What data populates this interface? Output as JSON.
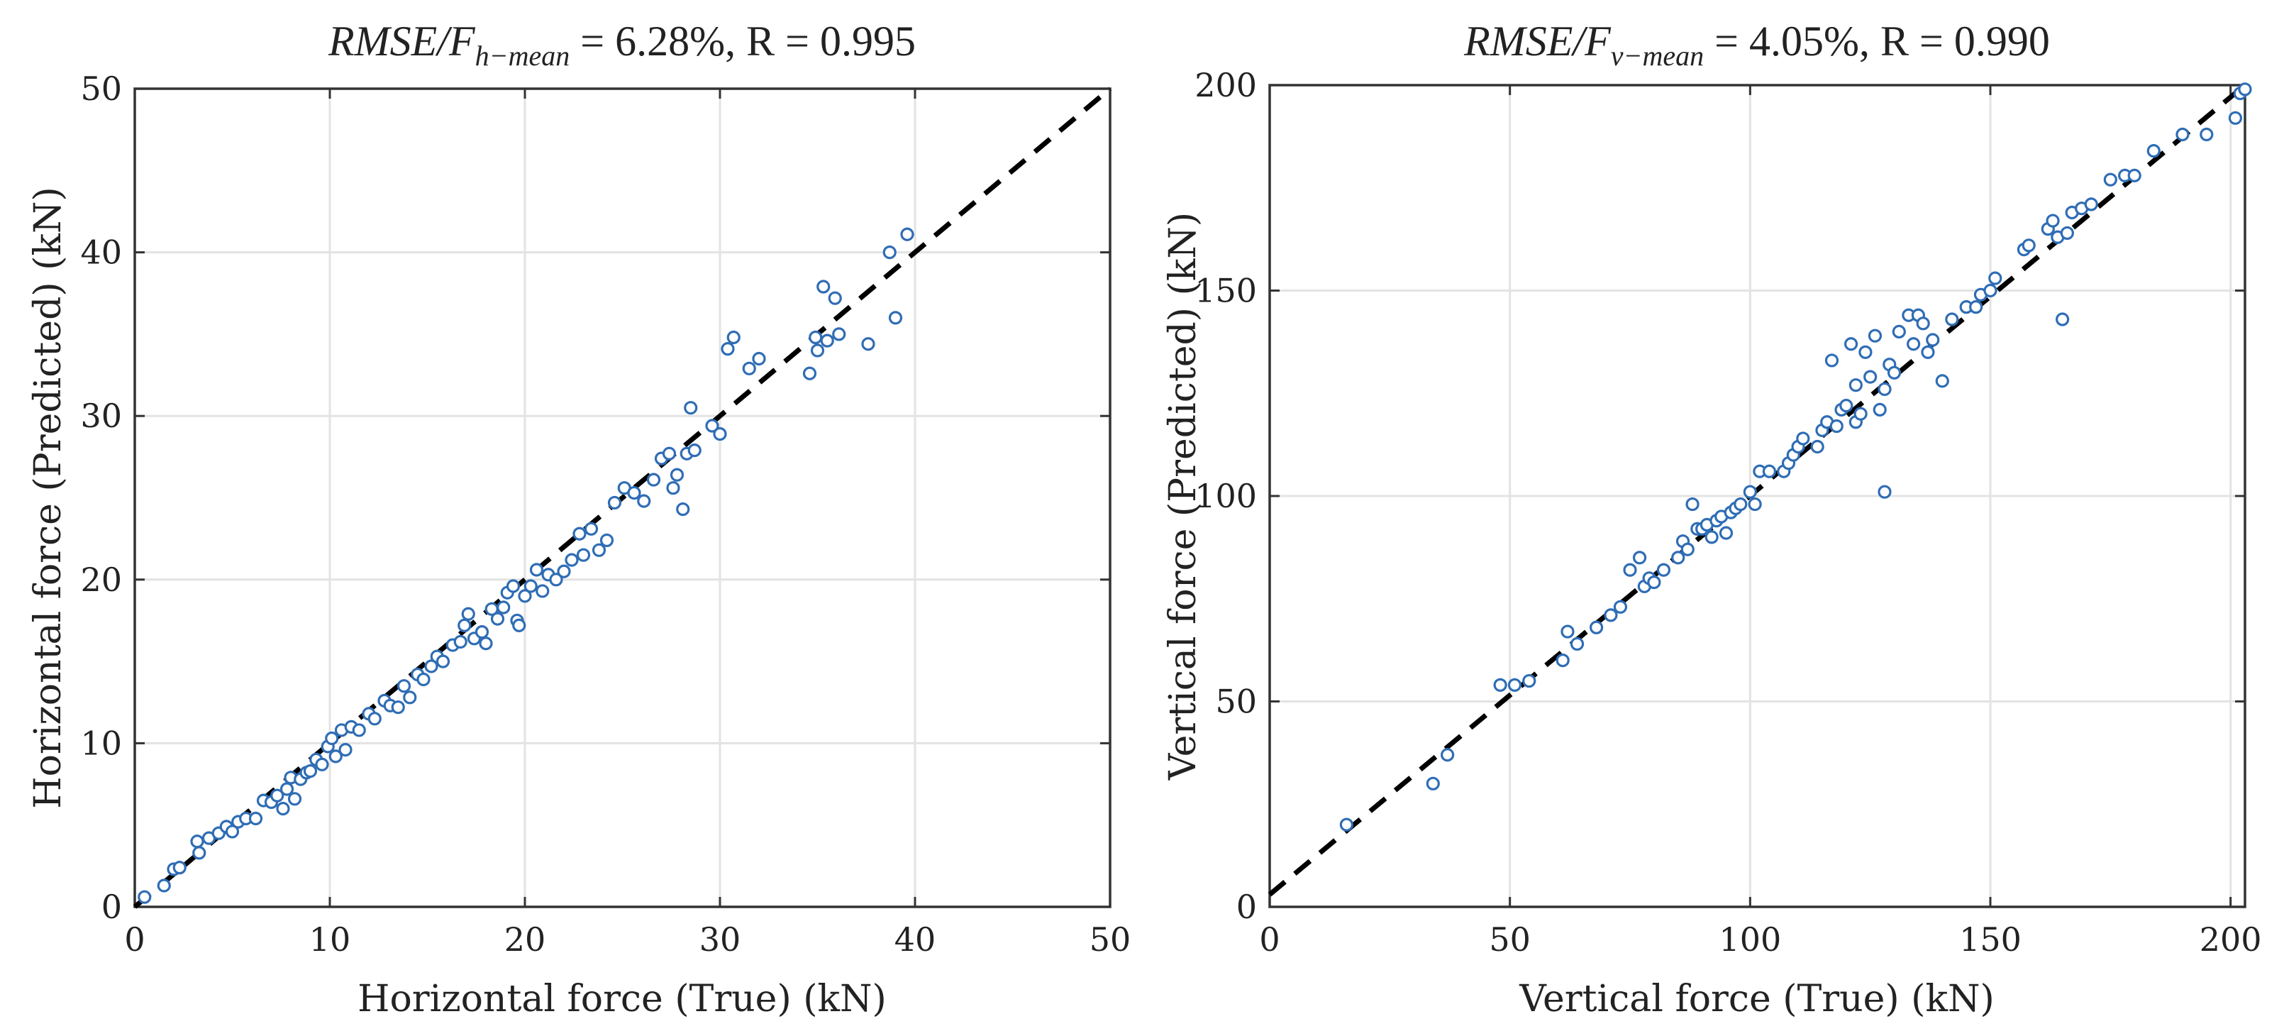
{
  "chart_data": [
    {
      "type": "scatter",
      "title": {
        "metric": "RMSE/F",
        "subscript": "h−mean",
        "rest": " = 6.28%, R = 0.995"
      },
      "xlabel": "Horizontal force (True) (kN)",
      "ylabel": "Horizontal force (Predicted) (kN)",
      "xlim": [
        0,
        50
      ],
      "ylim": [
        0,
        50
      ],
      "xticks": [
        0,
        10,
        20,
        30,
        40,
        50
      ],
      "yticks": [
        0,
        10,
        20,
        30,
        40,
        50
      ],
      "grid": true,
      "reference_line": {
        "style": "dashed",
        "x": [
          0,
          50
        ],
        "y": [
          0,
          50
        ]
      },
      "marker_color": "#2f6db5",
      "points": [
        [
          0.5,
          0.6
        ],
        [
          1.5,
          1.3
        ],
        [
          2.0,
          2.3
        ],
        [
          2.3,
          2.4
        ],
        [
          3.2,
          4.0
        ],
        [
          3.3,
          3.3
        ],
        [
          3.8,
          4.2
        ],
        [
          4.3,
          4.5
        ],
        [
          4.7,
          4.9
        ],
        [
          5.0,
          4.6
        ],
        [
          5.3,
          5.2
        ],
        [
          5.7,
          5.4
        ],
        [
          6.2,
          5.4
        ],
        [
          6.6,
          6.5
        ],
        [
          7.0,
          6.4
        ],
        [
          7.3,
          6.8
        ],
        [
          7.6,
          6.0
        ],
        [
          7.8,
          7.2
        ],
        [
          8.0,
          7.9
        ],
        [
          8.2,
          6.6
        ],
        [
          8.5,
          7.8
        ],
        [
          8.8,
          8.2
        ],
        [
          9.0,
          8.3
        ],
        [
          9.3,
          9.0
        ],
        [
          9.6,
          8.7
        ],
        [
          9.9,
          9.8
        ],
        [
          10.1,
          10.3
        ],
        [
          10.3,
          9.2
        ],
        [
          10.6,
          10.8
        ],
        [
          10.8,
          9.6
        ],
        [
          11.1,
          11.0
        ],
        [
          11.5,
          10.8
        ],
        [
          12.0,
          11.8
        ],
        [
          12.3,
          11.5
        ],
        [
          12.8,
          12.6
        ],
        [
          13.1,
          12.3
        ],
        [
          13.5,
          12.2
        ],
        [
          13.8,
          13.5
        ],
        [
          14.1,
          12.8
        ],
        [
          14.5,
          14.2
        ],
        [
          14.8,
          13.9
        ],
        [
          15.2,
          14.7
        ],
        [
          15.5,
          15.3
        ],
        [
          15.8,
          15.0
        ],
        [
          16.3,
          16.0
        ],
        [
          16.7,
          16.2
        ],
        [
          16.9,
          17.2
        ],
        [
          17.1,
          17.9
        ],
        [
          17.4,
          16.4
        ],
        [
          17.8,
          16.8
        ],
        [
          18.0,
          16.1
        ],
        [
          18.3,
          18.2
        ],
        [
          18.6,
          17.6
        ],
        [
          18.9,
          18.3
        ],
        [
          19.1,
          19.2
        ],
        [
          19.4,
          19.6
        ],
        [
          19.6,
          17.5
        ],
        [
          19.7,
          17.2
        ],
        [
          20.0,
          19.0
        ],
        [
          20.3,
          19.6
        ],
        [
          20.6,
          20.6
        ],
        [
          20.9,
          19.3
        ],
        [
          21.2,
          20.3
        ],
        [
          21.6,
          20.0
        ],
        [
          22.0,
          20.5
        ],
        [
          22.4,
          21.2
        ],
        [
          22.8,
          22.8
        ],
        [
          23.0,
          21.5
        ],
        [
          23.4,
          23.1
        ],
        [
          23.8,
          21.8
        ],
        [
          24.2,
          22.4
        ],
        [
          24.6,
          24.7
        ],
        [
          25.1,
          25.6
        ],
        [
          25.6,
          25.3
        ],
        [
          26.1,
          24.8
        ],
        [
          26.6,
          26.1
        ],
        [
          27.0,
          27.4
        ],
        [
          27.4,
          27.7
        ],
        [
          27.6,
          25.6
        ],
        [
          27.8,
          26.4
        ],
        [
          28.1,
          24.3
        ],
        [
          28.3,
          27.7
        ],
        [
          28.5,
          30.5
        ],
        [
          28.7,
          27.9
        ],
        [
          29.6,
          29.4
        ],
        [
          30.0,
          28.9
        ],
        [
          30.4,
          34.1
        ],
        [
          30.7,
          34.8
        ],
        [
          31.5,
          32.9
        ],
        [
          32.0,
          33.5
        ],
        [
          34.6,
          32.6
        ],
        [
          34.9,
          34.8
        ],
        [
          35.0,
          34.0
        ],
        [
          35.3,
          37.9
        ],
        [
          35.5,
          34.6
        ],
        [
          35.9,
          37.2
        ],
        [
          36.1,
          35.0
        ],
        [
          37.6,
          34.4
        ],
        [
          38.7,
          40.0
        ],
        [
          39.0,
          36.0
        ],
        [
          39.6,
          41.1
        ]
      ]
    },
    {
      "type": "scatter",
      "title": {
        "metric": "RMSE/F",
        "subscript": "v−mean",
        "rest": " = 4.05%, R = 0.990"
      },
      "xlabel": "Vertical force (True) (kN)",
      "ylabel": "Vertical force (Predicted) (kN)",
      "xlim": [
        0,
        203
      ],
      "ylim": [
        0,
        200
      ],
      "xticks": [
        0,
        50,
        100,
        150,
        200
      ],
      "yticks": [
        0,
        50,
        100,
        150,
        200
      ],
      "grid": true,
      "reference_line": {
        "style": "dashed",
        "x": [
          0,
          203
        ],
        "y": [
          3,
          200
        ]
      },
      "marker_color": "#2f6db5",
      "points": [
        [
          16,
          20
        ],
        [
          34,
          30
        ],
        [
          37,
          37
        ],
        [
          48,
          54
        ],
        [
          51,
          54
        ],
        [
          54,
          55
        ],
        [
          61,
          60
        ],
        [
          62,
          67
        ],
        [
          64,
          64
        ],
        [
          68,
          68
        ],
        [
          71,
          71
        ],
        [
          73,
          73
        ],
        [
          75,
          82
        ],
        [
          77,
          85
        ],
        [
          78,
          78
        ],
        [
          79,
          80
        ],
        [
          80,
          79
        ],
        [
          82,
          82
        ],
        [
          85,
          85
        ],
        [
          86,
          89
        ],
        [
          87,
          87
        ],
        [
          88,
          98
        ],
        [
          89,
          92
        ],
        [
          90,
          92
        ],
        [
          91,
          93
        ],
        [
          92,
          90
        ],
        [
          93,
          94
        ],
        [
          94,
          95
        ],
        [
          95,
          91
        ],
        [
          96,
          96
        ],
        [
          97,
          97
        ],
        [
          98,
          98
        ],
        [
          100,
          101
        ],
        [
          101,
          98
        ],
        [
          102,
          106
        ],
        [
          104,
          106
        ],
        [
          107,
          106
        ],
        [
          108,
          108
        ],
        [
          109,
          110
        ],
        [
          110,
          112
        ],
        [
          111,
          114
        ],
        [
          114,
          112
        ],
        [
          115,
          116
        ],
        [
          116,
          118
        ],
        [
          117,
          133
        ],
        [
          118,
          117
        ],
        [
          119,
          121
        ],
        [
          120,
          122
        ],
        [
          121,
          137
        ],
        [
          122,
          118
        ],
        [
          122,
          127
        ],
        [
          123,
          120
        ],
        [
          124,
          135
        ],
        [
          125,
          129
        ],
        [
          126,
          139
        ],
        [
          127,
          121
        ],
        [
          128,
          101
        ],
        [
          128,
          126
        ],
        [
          129,
          132
        ],
        [
          130,
          130
        ],
        [
          131,
          140
        ],
        [
          133,
          144
        ],
        [
          134,
          137
        ],
        [
          135,
          144
        ],
        [
          136,
          142
        ],
        [
          137,
          135
        ],
        [
          138,
          138
        ],
        [
          140,
          128
        ],
        [
          142,
          143
        ],
        [
          145,
          146
        ],
        [
          147,
          146
        ],
        [
          148,
          149
        ],
        [
          150,
          150
        ],
        [
          151,
          153
        ],
        [
          157,
          160
        ],
        [
          158,
          161
        ],
        [
          162,
          165
        ],
        [
          163,
          167
        ],
        [
          164,
          163
        ],
        [
          165,
          143
        ],
        [
          166,
          164
        ],
        [
          167,
          169
        ],
        [
          169,
          170
        ],
        [
          171,
          171
        ],
        [
          175,
          177
        ],
        [
          178,
          178
        ],
        [
          180,
          178
        ],
        [
          184,
          184
        ],
        [
          190,
          188
        ],
        [
          195,
          188
        ],
        [
          201,
          192
        ],
        [
          202,
          198
        ],
        [
          203,
          199
        ]
      ]
    }
  ]
}
